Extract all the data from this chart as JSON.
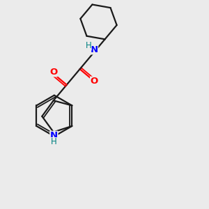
{
  "background_color": "#ebebeb",
  "bond_color": "#1a1a1a",
  "nitrogen_color": "#0000ff",
  "oxygen_color": "#ff0000",
  "nh_color": "#008080",
  "figsize": [
    3.0,
    3.0
  ],
  "dpi": 100,
  "xlim": [
    0,
    10
  ],
  "ylim": [
    0,
    10
  ],
  "lw_single": 1.6,
  "lw_double": 1.3,
  "font_size": 9.5
}
